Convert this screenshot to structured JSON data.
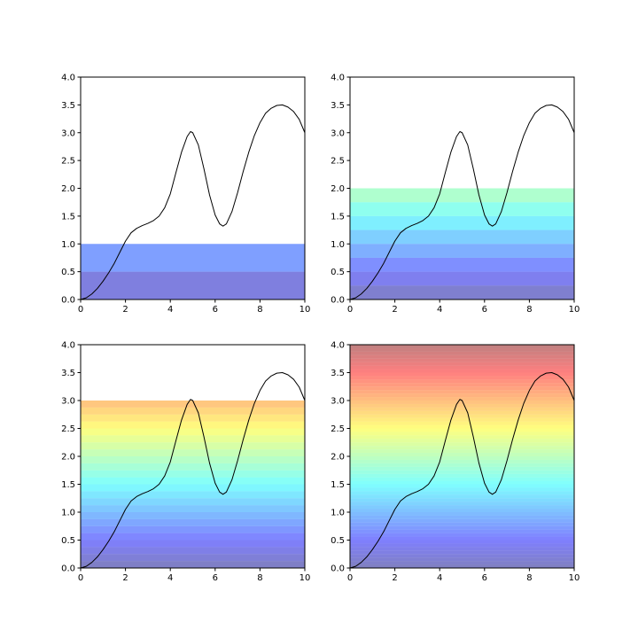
{
  "figure": {
    "background": "#ffffff",
    "grid": "2x2"
  },
  "chart_data": [
    {
      "type": "line",
      "position": "top-left",
      "title": "",
      "xlabel": "",
      "ylabel": "",
      "xlim": [
        0,
        10
      ],
      "ylim": [
        0,
        4
      ],
      "xticks": [
        "0",
        "2",
        "4",
        "6",
        "8",
        "10"
      ],
      "yticks": [
        "0.0",
        "0.5",
        "1.0",
        "1.5",
        "2.0",
        "2.5",
        "3.0",
        "3.5",
        "4.0"
      ],
      "grid": false,
      "legend": "none",
      "line_color": "#000000",
      "band_fill": {
        "colormap": "jet",
        "alpha": 0.5,
        "bands": [
          [
            0.0,
            0.5
          ],
          [
            0.5,
            1.0
          ]
        ]
      },
      "series": [
        {
          "values": [
            [
              0.0,
              0.0
            ],
            [
              0.25,
              0.03
            ],
            [
              0.5,
              0.1
            ],
            [
              0.75,
              0.2
            ],
            [
              1.0,
              0.33
            ],
            [
              1.25,
              0.48
            ],
            [
              1.5,
              0.65
            ],
            [
              1.75,
              0.85
            ],
            [
              2.0,
              1.05
            ],
            [
              2.25,
              1.2
            ],
            [
              2.5,
              1.28
            ],
            [
              2.75,
              1.33
            ],
            [
              3.0,
              1.37
            ],
            [
              3.25,
              1.42
            ],
            [
              3.5,
              1.5
            ],
            [
              3.75,
              1.65
            ],
            [
              4.0,
              1.9
            ],
            [
              4.25,
              2.28
            ],
            [
              4.5,
              2.65
            ],
            [
              4.75,
              2.93
            ],
            [
              4.9,
              3.02
            ],
            [
              5.0,
              3.0
            ],
            [
              5.25,
              2.78
            ],
            [
              5.5,
              2.35
            ],
            [
              5.75,
              1.88
            ],
            [
              6.0,
              1.52
            ],
            [
              6.2,
              1.36
            ],
            [
              6.35,
              1.32
            ],
            [
              6.5,
              1.36
            ],
            [
              6.75,
              1.58
            ],
            [
              7.0,
              1.92
            ],
            [
              7.25,
              2.3
            ],
            [
              7.5,
              2.65
            ],
            [
              7.75,
              2.95
            ],
            [
              8.0,
              3.18
            ],
            [
              8.25,
              3.35
            ],
            [
              8.5,
              3.44
            ],
            [
              8.75,
              3.49
            ],
            [
              9.0,
              3.5
            ],
            [
              9.25,
              3.46
            ],
            [
              9.5,
              3.38
            ],
            [
              9.75,
              3.24
            ],
            [
              10.0,
              3.0
            ]
          ]
        }
      ]
    },
    {
      "type": "line",
      "position": "top-right",
      "title": "",
      "xlabel": "",
      "ylabel": "",
      "xlim": [
        0,
        10
      ],
      "ylim": [
        0,
        4
      ],
      "xticks": [
        "0",
        "2",
        "4",
        "6",
        "8",
        "10"
      ],
      "yticks": [
        "0.0",
        "0.5",
        "1.0",
        "1.5",
        "2.0",
        "2.5",
        "3.0",
        "3.5",
        "4.0"
      ],
      "grid": false,
      "legend": "none",
      "line_color": "#000000",
      "band_fill": {
        "colormap": "jet",
        "alpha": 0.5,
        "bands": [
          [
            0.0,
            0.25
          ],
          [
            0.25,
            0.5
          ],
          [
            0.5,
            0.75
          ],
          [
            0.75,
            1.0
          ],
          [
            1.0,
            1.25
          ],
          [
            1.25,
            1.5
          ],
          [
            1.5,
            1.75
          ],
          [
            1.75,
            2.0
          ]
        ]
      },
      "series": [
        {
          "values": [
            [
              0.0,
              0.0
            ],
            [
              0.25,
              0.03
            ],
            [
              0.5,
              0.1
            ],
            [
              0.75,
              0.2
            ],
            [
              1.0,
              0.33
            ],
            [
              1.25,
              0.48
            ],
            [
              1.5,
              0.65
            ],
            [
              1.75,
              0.85
            ],
            [
              2.0,
              1.05
            ],
            [
              2.25,
              1.2
            ],
            [
              2.5,
              1.28
            ],
            [
              2.75,
              1.33
            ],
            [
              3.0,
              1.37
            ],
            [
              3.25,
              1.42
            ],
            [
              3.5,
              1.5
            ],
            [
              3.75,
              1.65
            ],
            [
              4.0,
              1.9
            ],
            [
              4.25,
              2.28
            ],
            [
              4.5,
              2.65
            ],
            [
              4.75,
              2.93
            ],
            [
              4.9,
              3.02
            ],
            [
              5.0,
              3.0
            ],
            [
              5.25,
              2.78
            ],
            [
              5.5,
              2.35
            ],
            [
              5.75,
              1.88
            ],
            [
              6.0,
              1.52
            ],
            [
              6.2,
              1.36
            ],
            [
              6.35,
              1.32
            ],
            [
              6.5,
              1.36
            ],
            [
              6.75,
              1.58
            ],
            [
              7.0,
              1.92
            ],
            [
              7.25,
              2.3
            ],
            [
              7.5,
              2.65
            ],
            [
              7.75,
              2.95
            ],
            [
              8.0,
              3.18
            ],
            [
              8.25,
              3.35
            ],
            [
              8.5,
              3.44
            ],
            [
              8.75,
              3.49
            ],
            [
              9.0,
              3.5
            ],
            [
              9.25,
              3.46
            ],
            [
              9.5,
              3.38
            ],
            [
              9.75,
              3.24
            ],
            [
              10.0,
              3.0
            ]
          ]
        }
      ]
    },
    {
      "type": "line",
      "position": "bottom-left",
      "title": "",
      "xlabel": "",
      "ylabel": "",
      "xlim": [
        0,
        10
      ],
      "ylim": [
        0,
        4
      ],
      "xticks": [
        "0",
        "2",
        "4",
        "6",
        "8",
        "10"
      ],
      "yticks": [
        "0.0",
        "0.5",
        "1.0",
        "1.5",
        "2.0",
        "2.5",
        "3.0",
        "3.5",
        "4.0"
      ],
      "grid": false,
      "legend": "none",
      "line_color": "#000000",
      "band_fill": {
        "colormap": "jet",
        "alpha": 0.5,
        "band_start": 0.0,
        "band_end": 3.0,
        "band_step": 0.125
      },
      "series": [
        {
          "values": [
            [
              0.0,
              0.0
            ],
            [
              0.25,
              0.03
            ],
            [
              0.5,
              0.1
            ],
            [
              0.75,
              0.2
            ],
            [
              1.0,
              0.33
            ],
            [
              1.25,
              0.48
            ],
            [
              1.5,
              0.65
            ],
            [
              1.75,
              0.85
            ],
            [
              2.0,
              1.05
            ],
            [
              2.25,
              1.2
            ],
            [
              2.5,
              1.28
            ],
            [
              2.75,
              1.33
            ],
            [
              3.0,
              1.37
            ],
            [
              3.25,
              1.42
            ],
            [
              3.5,
              1.5
            ],
            [
              3.75,
              1.65
            ],
            [
              4.0,
              1.9
            ],
            [
              4.25,
              2.28
            ],
            [
              4.5,
              2.65
            ],
            [
              4.75,
              2.93
            ],
            [
              4.9,
              3.02
            ],
            [
              5.0,
              3.0
            ],
            [
              5.25,
              2.78
            ],
            [
              5.5,
              2.35
            ],
            [
              5.75,
              1.88
            ],
            [
              6.0,
              1.52
            ],
            [
              6.2,
              1.36
            ],
            [
              6.35,
              1.32
            ],
            [
              6.5,
              1.36
            ],
            [
              6.75,
              1.58
            ],
            [
              7.0,
              1.92
            ],
            [
              7.25,
              2.3
            ],
            [
              7.5,
              2.65
            ],
            [
              7.75,
              2.95
            ],
            [
              8.0,
              3.18
            ],
            [
              8.25,
              3.35
            ],
            [
              8.5,
              3.44
            ],
            [
              8.75,
              3.49
            ],
            [
              9.0,
              3.5
            ],
            [
              9.25,
              3.46
            ],
            [
              9.5,
              3.38
            ],
            [
              9.75,
              3.24
            ],
            [
              10.0,
              3.0
            ]
          ]
        }
      ]
    },
    {
      "type": "line",
      "position": "bottom-right",
      "title": "",
      "xlabel": "",
      "ylabel": "",
      "xlim": [
        0,
        10
      ],
      "ylim": [
        0,
        4
      ],
      "xticks": [
        "0",
        "2",
        "4",
        "6",
        "8",
        "10"
      ],
      "yticks": [
        "0.0",
        "0.5",
        "1.0",
        "1.5",
        "2.0",
        "2.5",
        "3.0",
        "3.5",
        "4.0"
      ],
      "grid": false,
      "legend": "none",
      "line_color": "#000000",
      "band_fill": {
        "colormap": "jet",
        "alpha": 0.5,
        "band_start": 0.0,
        "band_end": 4.0,
        "band_step": 0.0625
      },
      "series": [
        {
          "values": [
            [
              0.0,
              0.0
            ],
            [
              0.25,
              0.03
            ],
            [
              0.5,
              0.1
            ],
            [
              0.75,
              0.2
            ],
            [
              1.0,
              0.33
            ],
            [
              1.25,
              0.48
            ],
            [
              1.5,
              0.65
            ],
            [
              1.75,
              0.85
            ],
            [
              2.0,
              1.05
            ],
            [
              2.25,
              1.2
            ],
            [
              2.5,
              1.28
            ],
            [
              2.75,
              1.33
            ],
            [
              3.0,
              1.37
            ],
            [
              3.25,
              1.42
            ],
            [
              3.5,
              1.5
            ],
            [
              3.75,
              1.65
            ],
            [
              4.0,
              1.9
            ],
            [
              4.25,
              2.28
            ],
            [
              4.5,
              2.65
            ],
            [
              4.75,
              2.93
            ],
            [
              4.9,
              3.02
            ],
            [
              5.0,
              3.0
            ],
            [
              5.25,
              2.78
            ],
            [
              5.5,
              2.35
            ],
            [
              5.75,
              1.88
            ],
            [
              6.0,
              1.52
            ],
            [
              6.2,
              1.36
            ],
            [
              6.35,
              1.32
            ],
            [
              6.5,
              1.36
            ],
            [
              6.75,
              1.58
            ],
            [
              7.0,
              1.92
            ],
            [
              7.25,
              2.3
            ],
            [
              7.5,
              2.65
            ],
            [
              7.75,
              2.95
            ],
            [
              8.0,
              3.18
            ],
            [
              8.25,
              3.35
            ],
            [
              8.5,
              3.44
            ],
            [
              8.75,
              3.49
            ],
            [
              9.0,
              3.5
            ],
            [
              9.25,
              3.46
            ],
            [
              9.5,
              3.38
            ],
            [
              9.75,
              3.24
            ],
            [
              10.0,
              3.0
            ]
          ]
        }
      ]
    }
  ]
}
